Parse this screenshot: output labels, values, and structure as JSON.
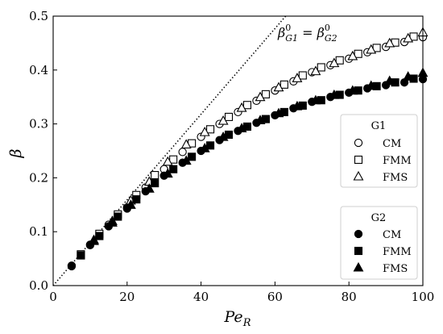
{
  "chart_data": {
    "type": "scatter",
    "xlabel": "Pe",
    "xlabel_sub": "R",
    "ylabel": "β",
    "xlim": [
      0,
      100
    ],
    "ylim": [
      0,
      0.5
    ],
    "x_ticks": [
      0,
      20,
      40,
      60,
      80,
      100
    ],
    "y_ticks": [
      0.0,
      0.1,
      0.2,
      0.3,
      0.4,
      0.5
    ],
    "x_tick_labels": [
      "0",
      "20",
      "40",
      "60",
      "80",
      "100"
    ],
    "y_tick_labels": [
      "0.0",
      "0.1",
      "0.2",
      "0.3",
      "0.4",
      "0.5"
    ],
    "grid": false,
    "reference_line": {
      "label_main": "β",
      "label_sup1": "0",
      "label_sub1": "G1",
      "label_eq": " = ",
      "label_sup2": "0",
      "label_sub2": "G2",
      "slope": 0.00795,
      "style": "dotted"
    },
    "legends": [
      {
        "title": "G1",
        "placement": "center-right",
        "entries": [
          {
            "label": "CM",
            "marker": "circle",
            "filled": false
          },
          {
            "label": "FMM",
            "marker": "square",
            "filled": false
          },
          {
            "label": "FMS",
            "marker": "triangle",
            "filled": false
          }
        ]
      },
      {
        "title": "G2",
        "placement": "lower-right",
        "entries": [
          {
            "label": "CM",
            "marker": "circle",
            "filled": true
          },
          {
            "label": "FMM",
            "marker": "square",
            "filled": true
          },
          {
            "label": "FMS",
            "marker": "triangle",
            "filled": true
          }
        ]
      }
    ],
    "series": [
      {
        "group": "G1",
        "label": "CM",
        "marker": "circle",
        "filled": false,
        "x": [
          5,
          10,
          15,
          20,
          25,
          30,
          35,
          40,
          45,
          50,
          55,
          60,
          65,
          70,
          75,
          80,
          85,
          90,
          95,
          100
        ],
        "y": [
          0.037,
          0.076,
          0.113,
          0.145,
          0.182,
          0.216,
          0.248,
          0.276,
          0.3,
          0.322,
          0.343,
          0.362,
          0.379,
          0.396,
          0.409,
          0.421,
          0.433,
          0.443,
          0.452,
          0.461
        ]
      },
      {
        "group": "G1",
        "label": "FMM",
        "marker": "square",
        "filled": false,
        "x": [
          7.5,
          12.5,
          17.5,
          22.5,
          27.5,
          32.5,
          37.5,
          42.5,
          47.5,
          52.5,
          57.5,
          62.5,
          67.5,
          72.5,
          77.5,
          82.5,
          87.5,
          92.5,
          97.5
        ],
        "y": [
          0.058,
          0.096,
          0.132,
          0.168,
          0.205,
          0.234,
          0.264,
          0.29,
          0.313,
          0.335,
          0.355,
          0.373,
          0.39,
          0.405,
          0.418,
          0.43,
          0.441,
          0.451,
          0.462
        ]
      },
      {
        "group": "G1",
        "label": "FMS",
        "marker": "triangle",
        "filled": false,
        "x": [
          11,
          16,
          21,
          26,
          31,
          36,
          41,
          46,
          51,
          56,
          61,
          66,
          71,
          76,
          81,
          86,
          91,
          96,
          100
        ],
        "y": [
          0.085,
          0.12,
          0.158,
          0.193,
          0.23,
          0.262,
          0.285,
          0.306,
          0.33,
          0.35,
          0.368,
          0.385,
          0.398,
          0.413,
          0.426,
          0.438,
          0.45,
          0.459,
          0.47
        ]
      },
      {
        "group": "G2",
        "label": "CM",
        "marker": "circle",
        "filled": true,
        "x": [
          5,
          10,
          15,
          20,
          25,
          30,
          35,
          40,
          45,
          50,
          55,
          60,
          65,
          70,
          75,
          80,
          85,
          90,
          95,
          100
        ],
        "y": [
          0.036,
          0.075,
          0.11,
          0.143,
          0.175,
          0.204,
          0.228,
          0.25,
          0.27,
          0.287,
          0.302,
          0.316,
          0.329,
          0.341,
          0.35,
          0.358,
          0.366,
          0.372,
          0.377,
          0.383
        ]
      },
      {
        "group": "G2",
        "label": "FMM",
        "marker": "square",
        "filled": true,
        "x": [
          7.5,
          12.5,
          17.5,
          22.5,
          27.5,
          32.5,
          37.5,
          42.5,
          47.5,
          52.5,
          57.5,
          62.5,
          67.5,
          72.5,
          77.5,
          82.5,
          87.5,
          92.5,
          97.5
        ],
        "y": [
          0.056,
          0.092,
          0.128,
          0.16,
          0.19,
          0.216,
          0.239,
          0.26,
          0.28,
          0.295,
          0.309,
          0.322,
          0.334,
          0.344,
          0.354,
          0.362,
          0.37,
          0.377,
          0.384
        ]
      },
      {
        "group": "G2",
        "label": "FMS",
        "marker": "triangle",
        "filled": true,
        "x": [
          11,
          16,
          21,
          26,
          31,
          36,
          41,
          46,
          51,
          56,
          61,
          66,
          71,
          76,
          81,
          86,
          91,
          96,
          100
        ],
        "y": [
          0.083,
          0.117,
          0.15,
          0.18,
          0.208,
          0.232,
          0.255,
          0.276,
          0.292,
          0.307,
          0.32,
          0.333,
          0.344,
          0.354,
          0.362,
          0.371,
          0.38,
          0.388,
          0.395
        ]
      }
    ]
  }
}
